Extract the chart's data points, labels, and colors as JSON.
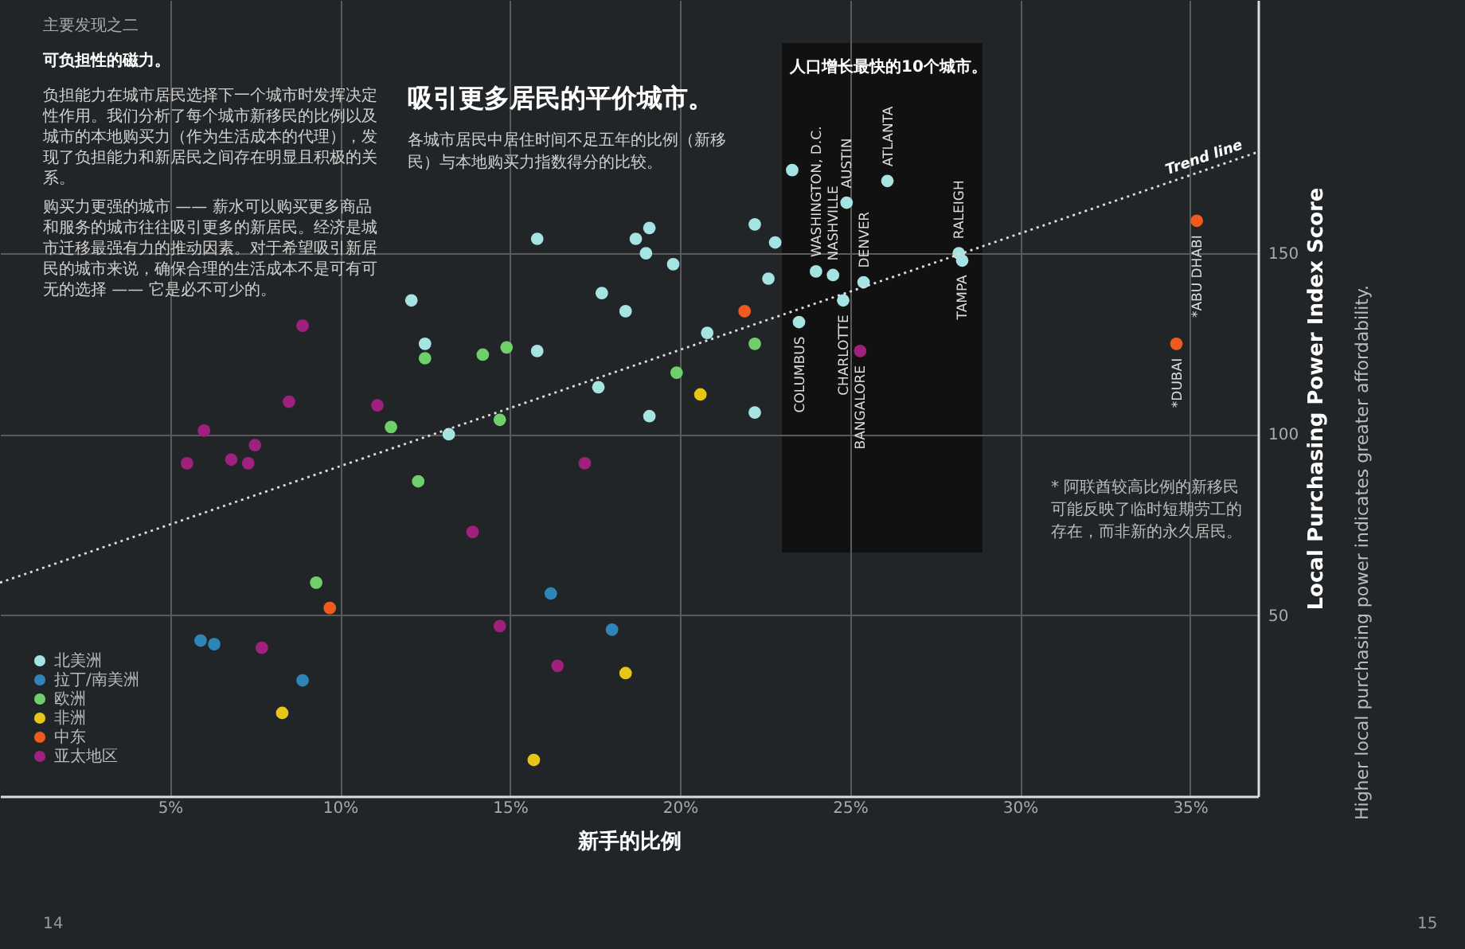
{
  "chart_data": {
    "type": "scatter",
    "title": "吸引更多居民的平价城市。",
    "subtitle": "各城市居民中居住时间不足五年的比例（新移民）与本地购买力指数得分的比较。",
    "xlabel": "新手的比例",
    "ylabel": "Local Purchasing Power Index Score",
    "xlim": [
      0,
      37
    ],
    "ylim": [
      0,
      220
    ],
    "xticks": [
      {
        "value": 5,
        "label": "5%"
      },
      {
        "value": 10,
        "label": "10%"
      },
      {
        "value": 15,
        "label": "15%"
      },
      {
        "value": 20,
        "label": "20%"
      },
      {
        "value": 25,
        "label": "25%"
      },
      {
        "value": 30,
        "label": "30%"
      },
      {
        "value": 35,
        "label": "35%"
      }
    ],
    "yticks": [
      50,
      100,
      150
    ],
    "grid": true,
    "legend": "bottom left",
    "marker": "circle",
    "series": [
      {
        "name": "北美洲",
        "color": "#a6e3e3",
        "x": [
          15.8,
          18.7,
          19.1,
          19.0,
          19.8,
          17.7,
          18.4,
          12.1,
          12.5,
          15.8,
          22.2,
          22.8,
          22.6,
          20.8,
          23.5,
          17.6,
          19.1,
          22.2,
          13.2,
          23.3,
          24.0,
          24.5,
          24.9,
          25.4,
          26.1,
          28.2,
          28.3,
          24.8
        ],
        "values": [
          154,
          154,
          157,
          150,
          147,
          139,
          134,
          137,
          125,
          123,
          158,
          153,
          143,
          128,
          131,
          113,
          105,
          106,
          100,
          173,
          145,
          144,
          164,
          142,
          170,
          150,
          148,
          137
        ]
      },
      {
        "name": "拉丁/南美洲",
        "color": "#2e86b8",
        "x": [
          16.2,
          5.9,
          6.3,
          8.9,
          18.0
        ],
        "values": [
          56,
          43,
          42,
          32,
          46
        ]
      },
      {
        "name": "欧洲",
        "color": "#6fcf6a",
        "x": [
          12.5,
          14.2,
          14.9,
          11.5,
          14.7,
          19.9,
          12.3,
          9.3,
          22.2
        ],
        "values": [
          121,
          122,
          124,
          102,
          104,
          117,
          87,
          59,
          125
        ]
      },
      {
        "name": "非洲",
        "color": "#e6c619",
        "x": [
          8.3,
          18.4,
          15.7,
          20.6
        ],
        "values": [
          23,
          34,
          10,
          111
        ]
      },
      {
        "name": "中东",
        "color": "#f05a1e",
        "x": [
          9.7,
          21.9,
          34.6,
          35.2
        ],
        "values": [
          52,
          134,
          125,
          159
        ]
      },
      {
        "name": "亚太地区",
        "color": "#a0207e",
        "x": [
          8.9,
          8.5,
          11.1,
          6.0,
          7.5,
          6.8,
          7.3,
          5.5,
          17.2,
          13.9,
          7.7,
          14.7,
          16.4,
          25.3
        ],
        "values": [
          130,
          109,
          108,
          101,
          97,
          93,
          92,
          92,
          92,
          73,
          41,
          47,
          36,
          123
        ]
      },
      {
        "name": "Trend line",
        "type": "line",
        "marker": "none",
        "color": "#dddddd",
        "line_style": "dotted",
        "x": [
          0,
          37
        ],
        "values": [
          59,
          178
        ]
      }
    ],
    "annotations": [
      "主要发现之二",
      "可负担性的磁力。",
      "负担能力在城市居民选择下一个城市时发挥决定性作用。我们分析了每个城市新移民的比例以及城市的本地购买力（作为生活成本的代理），发现了负担能力和新居民之间存在明显且积极的关系。",
      "购买力更强的城市 —— 薪水可以购买更多商品和服务的城市往往吸引更多的新居民。经济是城市迁移最强有力的推动因素。对于希望吸引新居民的城市来说，确保合理的生活成本不是可有可无的选择 —— 它是必不可少的。",
      "人口增长最快的10个城市。",
      "* 阿联酋较高比例的新移民可能反映了临时短期劳工的存在，而非新的永久居民。",
      "Higher local purchasing power indicates greater affordability.",
      "14",
      "15",
      {
        "text": "WASHINGTON, D.C.",
        "x": 24.0,
        "y": 145
      },
      {
        "text": "NASHVILLE",
        "x": 24.5,
        "y": 144
      },
      {
        "text": "AUSTIN",
        "x": 24.9,
        "y": 164
      },
      {
        "text": "DENVER",
        "x": 25.4,
        "y": 142
      },
      {
        "text": "ATLANTA",
        "x": 26.1,
        "y": 170
      },
      {
        "text": "RALEIGH",
        "x": 28.2,
        "y": 150
      },
      {
        "text": "COLUMBUS",
        "x": 23.5,
        "y": 131
      },
      {
        "text": "CHARLOTTE",
        "x": 24.8,
        "y": 137
      },
      {
        "text": "BANGALORE",
        "x": 25.3,
        "y": 123
      },
      {
        "text": "TAMPA",
        "x": 28.3,
        "y": 148
      },
      {
        "text": "*DUBAI",
        "x": 34.6,
        "y": 125
      },
      {
        "text": "*ABU DHABI",
        "x": 35.2,
        "y": 159
      }
    ]
  }
}
